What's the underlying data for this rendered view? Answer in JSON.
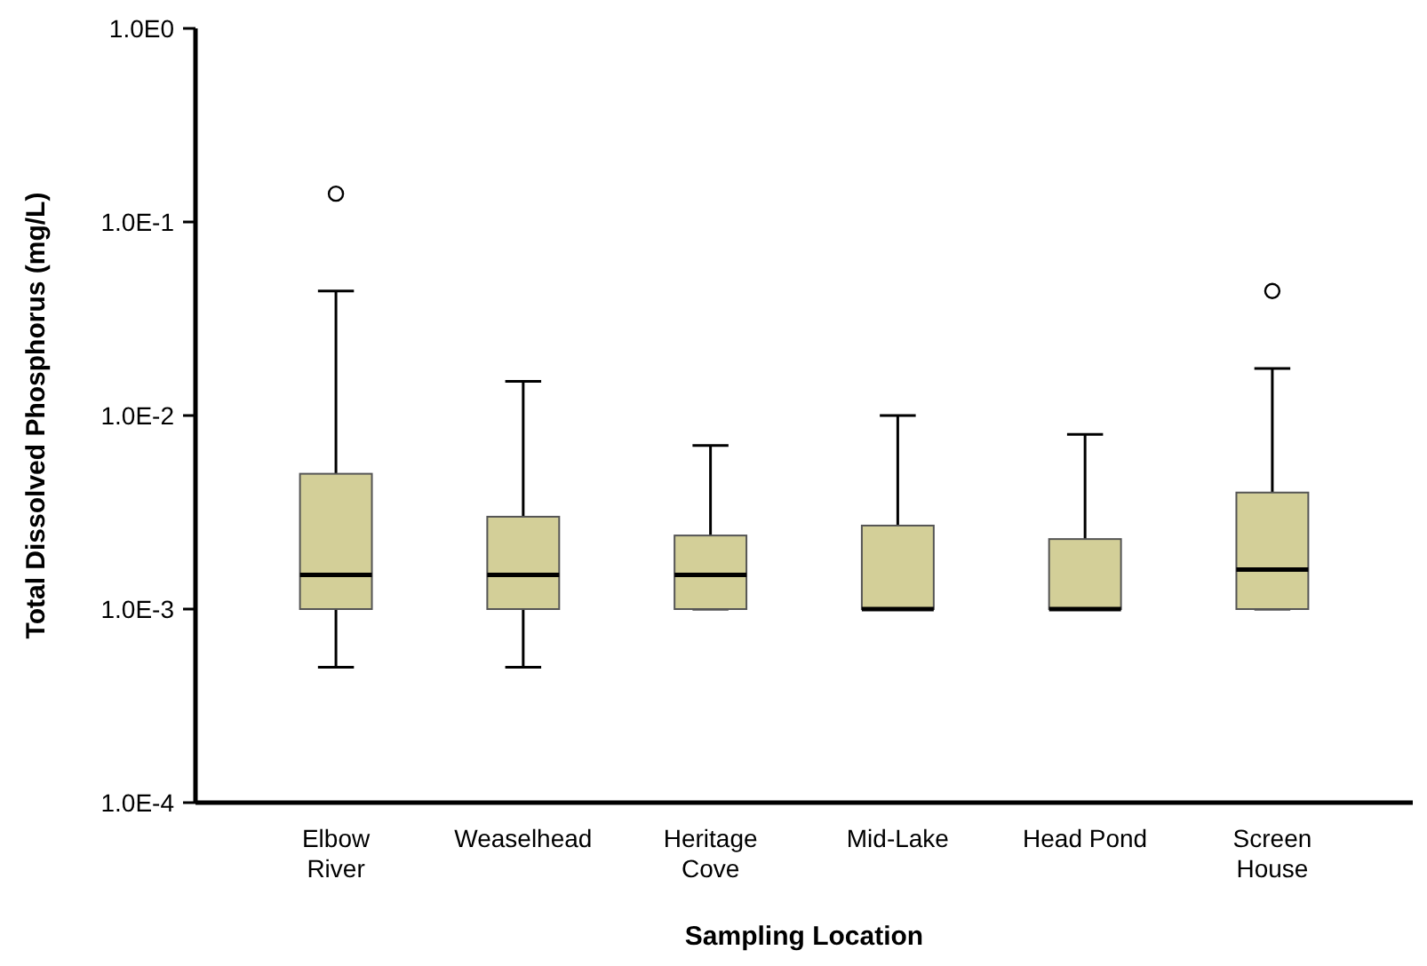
{
  "chart_data": {
    "type": "box",
    "xlabel": "Sampling Location",
    "ylabel": "Total Dissolved Phosphorus (mg/L)",
    "categories": [
      "Elbow River",
      "Weaselhead",
      "Heritage Cove",
      "Mid-Lake",
      "Head Pond",
      "Screen House"
    ],
    "color": "#d3cf98",
    "log": true,
    "grid": false,
    "ylim": [
      0.0001,
      1
    ],
    "yticks": [
      {
        "value": 0.0001,
        "label": "1.0E-4"
      },
      {
        "value": 0.001,
        "label": "1.0E-3"
      },
      {
        "value": 0.01,
        "label": "1.0E-2"
      },
      {
        "value": 0.1,
        "label": "1.0E-1"
      },
      {
        "value": 1,
        "label": "1.0E0"
      }
    ],
    "boxes": [
      {
        "low": 0.0005,
        "q1": 0.001,
        "median": 0.0015,
        "q3": 0.005,
        "high": 0.044,
        "outliers": [
          0.14
        ]
      },
      {
        "low": 0.0005,
        "q1": 0.001,
        "median": 0.0015,
        "q3": 0.003,
        "high": 0.015
      },
      {
        "low": 0.001,
        "q1": 0.001,
        "median": 0.0015,
        "q3": 0.0024,
        "high": 0.007
      },
      {
        "low": 0.001,
        "q1": 0.001,
        "median": 0.001,
        "q3": 0.0027,
        "high": 0.01
      },
      {
        "low": 0.001,
        "q1": 0.001,
        "median": 0.001,
        "q3": 0.0023,
        "high": 0.008
      },
      {
        "low": 0.001,
        "q1": 0.001,
        "median": 0.0016,
        "q3": 0.004,
        "high": 0.0175,
        "outliers": [
          0.044
        ]
      }
    ]
  }
}
